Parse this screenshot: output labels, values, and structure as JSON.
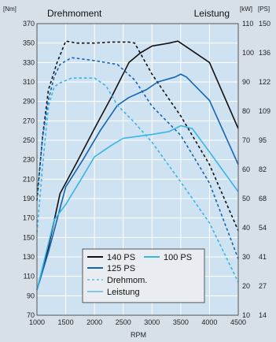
{
  "chart_data": {
    "type": "line",
    "title_left": "Drehmoment",
    "title_right": "Leistung",
    "xlabel": "RPM",
    "xlim": [
      1000,
      4500
    ],
    "x_ticks": [
      1000,
      1500,
      2000,
      2500,
      3000,
      3500,
      4000,
      4500
    ],
    "y_left": {
      "unit": "[Nm]",
      "lim": [
        70,
        370
      ],
      "ticks": [
        70,
        90,
        110,
        130,
        150,
        170,
        190,
        210,
        230,
        250,
        270,
        290,
        310,
        330,
        350,
        370
      ]
    },
    "y_right_kw": {
      "unit": "[kW]",
      "ticks": [
        10,
        20,
        30,
        40,
        50,
        60,
        70,
        80,
        90,
        100,
        110
      ]
    },
    "y_right_ps": {
      "unit": "[PS]",
      "ticks": [
        14,
        27,
        41,
        54,
        68,
        82,
        95,
        109,
        122,
        136,
        150
      ]
    },
    "colors": {
      "ps140": "#111111",
      "ps125": "#1464b4",
      "ps100": "#38b4e6",
      "plot_bg": "#cfe2f1",
      "grid": "#ffffff"
    },
    "series": [
      {
        "name": "140 PS",
        "kind": "leistung",
        "color": "#111111",
        "points": [
          [
            1000,
            96
          ],
          [
            1200,
            140
          ],
          [
            1400,
            195
          ],
          [
            1700,
            228
          ],
          [
            2000,
            262
          ],
          [
            2300,
            295
          ],
          [
            2600,
            330
          ],
          [
            2800,
            340
          ],
          [
            3000,
            347
          ],
          [
            3300,
            350
          ],
          [
            3450,
            352
          ],
          [
            3600,
            346
          ],
          [
            4000,
            330
          ],
          [
            4500,
            262
          ]
        ]
      },
      {
        "name": "140 PS",
        "kind": "drehmoment",
        "color": "#111111",
        "points": [
          [
            1000,
            188
          ],
          [
            1100,
            255
          ],
          [
            1200,
            302
          ],
          [
            1350,
            330
          ],
          [
            1500,
            352
          ],
          [
            1700,
            350
          ],
          [
            2000,
            350
          ],
          [
            2300,
            351
          ],
          [
            2600,
            351
          ],
          [
            2700,
            350
          ],
          [
            3000,
            318
          ],
          [
            3300,
            292
          ],
          [
            3500,
            275
          ],
          [
            4000,
            225
          ],
          [
            4500,
            157
          ]
        ]
      },
      {
        "name": "125 PS",
        "kind": "leistung",
        "color": "#1464b4",
        "points": [
          [
            1000,
            96
          ],
          [
            1200,
            135
          ],
          [
            1500,
            202
          ],
          [
            1800,
            230
          ],
          [
            2100,
            260
          ],
          [
            2400,
            286
          ],
          [
            2600,
            294
          ],
          [
            2900,
            302
          ],
          [
            3100,
            310
          ],
          [
            3400,
            315
          ],
          [
            3500,
            318
          ],
          [
            3600,
            315
          ],
          [
            4000,
            291
          ],
          [
            4500,
            225
          ]
        ]
      },
      {
        "name": "125 PS",
        "kind": "drehmoment",
        "color": "#1464b4",
        "points": [
          [
            1000,
            192
          ],
          [
            1100,
            254
          ],
          [
            1200,
            292
          ],
          [
            1300,
            315
          ],
          [
            1400,
            328
          ],
          [
            1600,
            335
          ],
          [
            2000,
            332
          ],
          [
            2400,
            328
          ],
          [
            2700,
            312
          ],
          [
            3000,
            285
          ],
          [
            3500,
            255
          ],
          [
            4000,
            206
          ],
          [
            4500,
            128
          ]
        ]
      },
      {
        "name": "100 PS",
        "kind": "leistung",
        "color": "#38b4e6",
        "points": [
          [
            1000,
            96
          ],
          [
            1300,
            168
          ],
          [
            1500,
            184
          ],
          [
            1800,
            213
          ],
          [
            2000,
            233
          ],
          [
            2300,
            245
          ],
          [
            2500,
            252
          ],
          [
            3000,
            256
          ],
          [
            3300,
            259
          ],
          [
            3500,
            265
          ],
          [
            3700,
            262
          ],
          [
            4000,
            238
          ],
          [
            4500,
            197
          ]
        ]
      },
      {
        "name": "100 PS",
        "kind": "drehmoment",
        "color": "#38b4e6",
        "points": [
          [
            1000,
            155
          ],
          [
            1100,
            225
          ],
          [
            1200,
            285
          ],
          [
            1300,
            305
          ],
          [
            1400,
            309
          ],
          [
            1600,
            314
          ],
          [
            2000,
            314
          ],
          [
            2200,
            306
          ],
          [
            2400,
            286
          ],
          [
            2700,
            268
          ],
          [
            3000,
            248
          ],
          [
            3500,
            207
          ],
          [
            4000,
            165
          ],
          [
            4500,
            104
          ]
        ]
      }
    ],
    "legend": {
      "placement": "bottom-center",
      "entries": [
        {
          "label": "140 PS",
          "color": "#111111",
          "style": "solid"
        },
        {
          "label": "100 PS",
          "color": "#38b4e6",
          "style": "solid"
        },
        {
          "label": "125 PS",
          "color": "#1464b4",
          "style": "solid"
        },
        {
          "label": "Drehmom.",
          "color": "#7fc6e8",
          "style": "dashed"
        },
        {
          "label": "Leistung",
          "color": "#7fc6e8",
          "style": "solid"
        }
      ]
    }
  }
}
